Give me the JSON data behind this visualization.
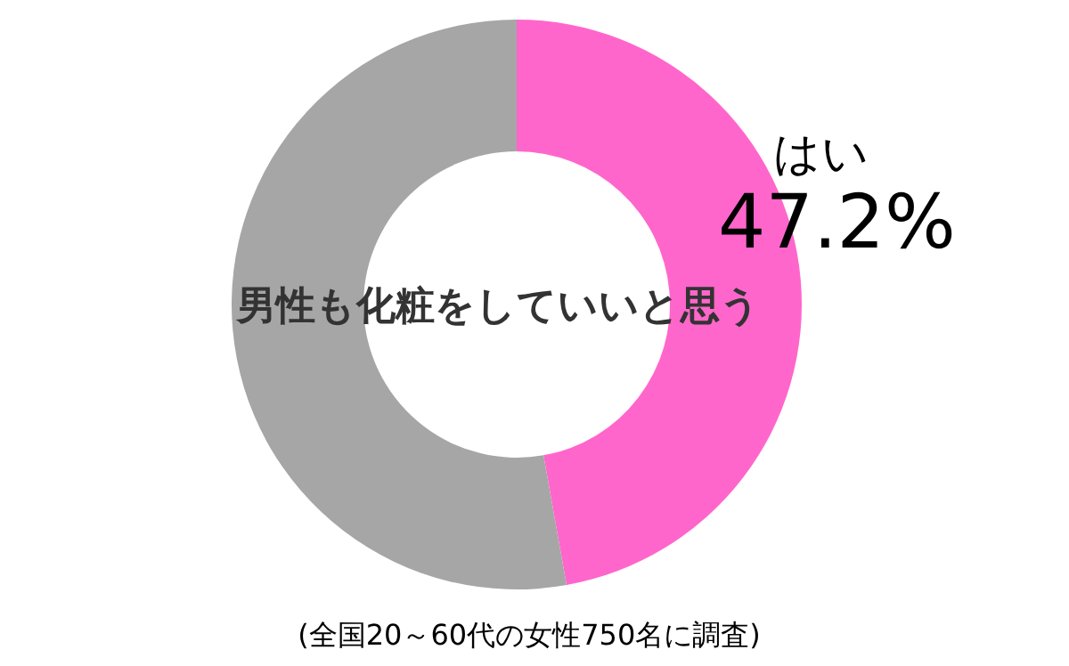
{
  "chart_data": {
    "type": "donut",
    "title": "男性も化粧をしていいと思う",
    "categories": [
      "はい",
      null
    ],
    "values": [
      47.2,
      52.8
    ],
    "colors": [
      "#ff66cc",
      "#a6a6a6"
    ],
    "value_labels": [
      "47.2%",
      null
    ],
    "annotations": [
      "(全国20～60代の女性750名に調査)"
    ]
  }
}
